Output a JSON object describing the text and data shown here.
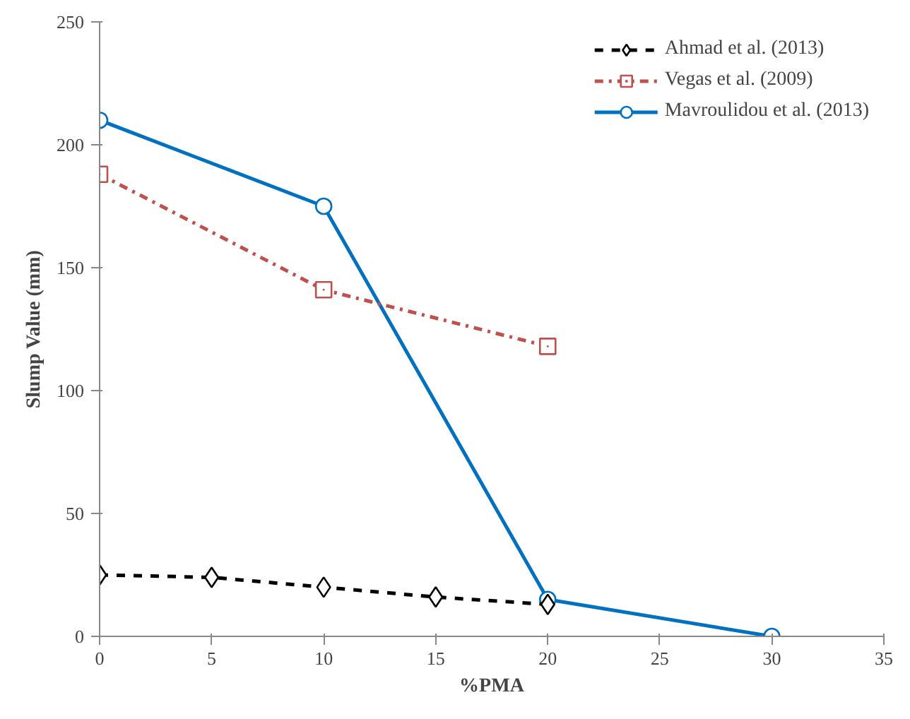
{
  "chart_data": {
    "type": "line",
    "xlabel": "%PMA",
    "ylabel": "Slump Value (mm)",
    "xlim": [
      0,
      35
    ],
    "xticks": [
      0,
      5,
      10,
      15,
      20,
      25,
      30,
      35
    ],
    "ylim": [
      0,
      250
    ],
    "yticks": [
      0,
      50,
      100,
      150,
      200,
      250
    ],
    "grid": false,
    "legend": "top right",
    "series": [
      {
        "name": "Ahmad et al. (2013)",
        "color": "#000000",
        "x": [
          0,
          5,
          10,
          15,
          20
        ],
        "values": [
          25,
          24,
          20,
          16,
          13
        ],
        "marker": "diamond",
        "line_style": "dashed"
      },
      {
        "name": "Vegas et al. (2009)",
        "color": "#c0504d",
        "x": [
          0,
          10,
          20
        ],
        "values": [
          188,
          141,
          118
        ],
        "marker": "square",
        "line_style": "dashdot"
      },
      {
        "name": "Mavroulidou et al. (2013)",
        "color": "#0070c0",
        "x": [
          0,
          10,
          20,
          30
        ],
        "values": [
          210,
          175,
          15,
          0
        ],
        "marker": "circle",
        "line_style": "solid"
      }
    ]
  }
}
